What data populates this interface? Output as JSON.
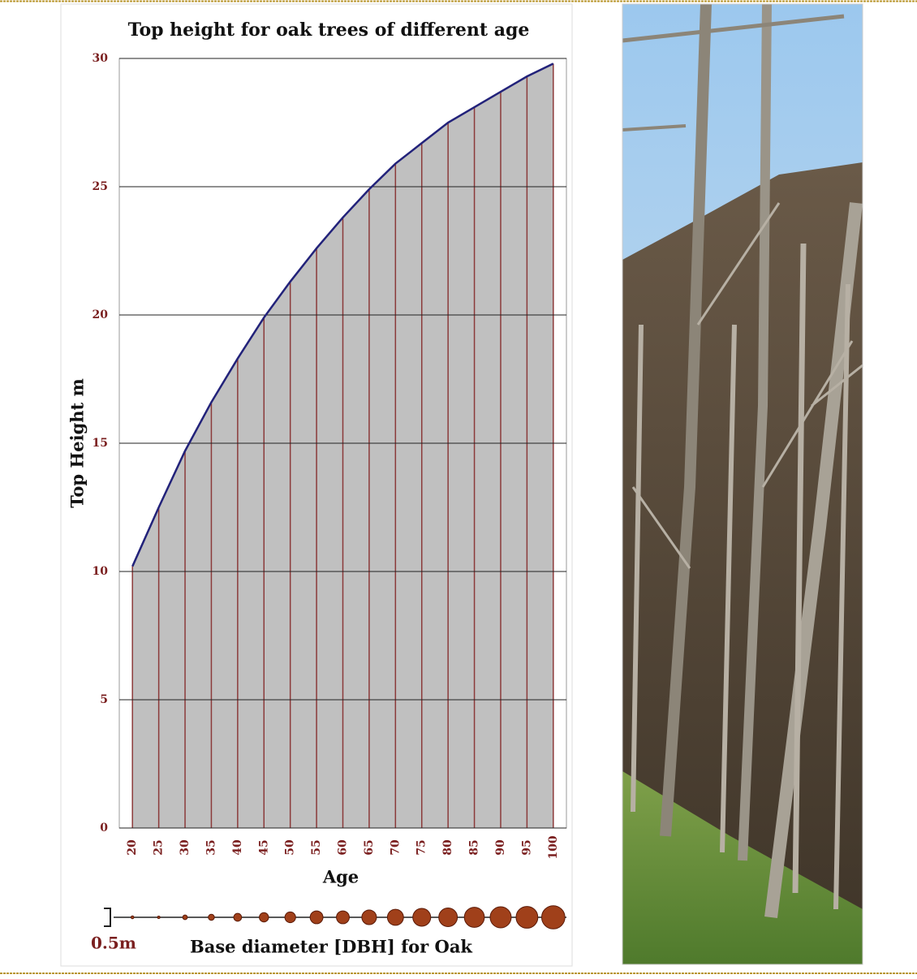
{
  "chart_data": {
    "type": "area",
    "title": "Top height for oak trees of different age",
    "x_label": "Age",
    "y_label": "Top Height m",
    "categories": [
      20,
      25,
      30,
      35,
      40,
      45,
      50,
      55,
      60,
      65,
      70,
      75,
      80,
      85,
      90,
      95,
      100
    ],
    "values": [
      10.2,
      12.5,
      14.7,
      16.6,
      18.3,
      19.9,
      21.3,
      22.6,
      23.8,
      24.9,
      25.9,
      26.7,
      27.5,
      28.1,
      28.7,
      29.3,
      29.8
    ],
    "color": "#22227a",
    "fill_color": "#c0c0c0",
    "drop_line_color": "#8b3a3a",
    "tick_color": "#7a1f1f",
    "ylim": [
      0,
      30
    ],
    "yticks": [
      0,
      5,
      10,
      15,
      20,
      25,
      30
    ],
    "grid": true,
    "dbh": {
      "title": "Base diameter [DBH] for Oak",
      "scale_label": "0.5m",
      "scale_value": 0.5,
      "color": "#a0401a",
      "values": [
        0.08,
        0.07,
        0.13,
        0.17,
        0.22,
        0.26,
        0.3,
        0.36,
        0.36,
        0.41,
        0.45,
        0.5,
        0.52,
        0.56,
        0.59,
        0.61,
        0.65
      ]
    }
  }
}
